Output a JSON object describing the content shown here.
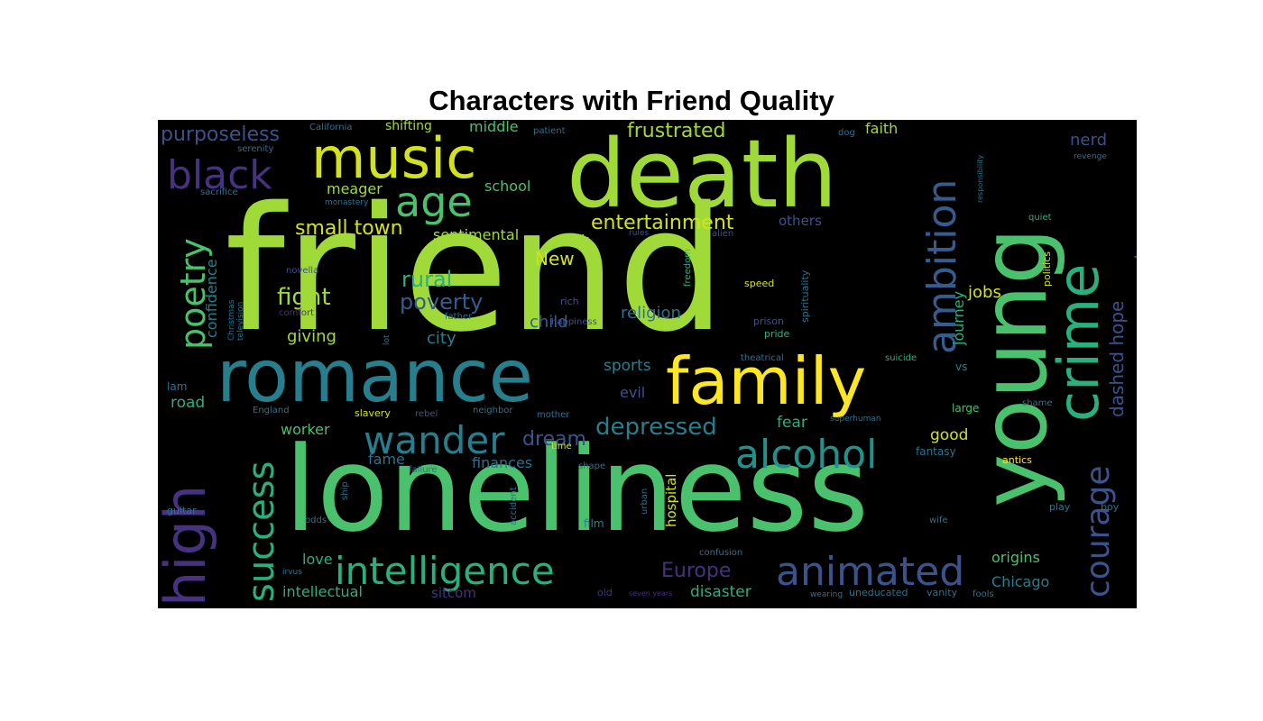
{
  "title": "Characters with Friend Quality",
  "words": [
    {
      "text": "friend",
      "color": "#a0da39"
    },
    {
      "text": "loneliness",
      "color": "#4ac16d"
    },
    {
      "text": "death",
      "color": "#a0da39"
    },
    {
      "text": "young",
      "color": "#4ac16d"
    },
    {
      "text": "romance",
      "color": "#277f8e"
    },
    {
      "text": "family",
      "color": "#fde725"
    },
    {
      "text": "music",
      "color": "#d2e21b"
    },
    {
      "text": "crime",
      "color": "#2ab07f"
    },
    {
      "text": "high",
      "color": "#46327e"
    },
    {
      "text": "black",
      "color": "#46327e"
    },
    {
      "text": "age",
      "color": "#4ac16d"
    },
    {
      "text": "ambition",
      "color": "#365c8d"
    },
    {
      "text": "intelligence",
      "color": "#2ab07f"
    },
    {
      "text": "animated",
      "color": "#3b528b"
    },
    {
      "text": "alcohol",
      "color": "#21918c"
    },
    {
      "text": "wander",
      "color": "#277f8e"
    },
    {
      "text": "success",
      "color": "#2ab07f"
    },
    {
      "text": "poetry",
      "color": "#4ac16d"
    },
    {
      "text": "courage",
      "color": "#3b528b"
    },
    {
      "text": "entertainment",
      "color": "#d2e21b"
    },
    {
      "text": "frustrated",
      "color": "#a0da39"
    },
    {
      "text": "purposeless",
      "color": "#3b528b"
    },
    {
      "text": "small town",
      "color": "#d2e21b"
    },
    {
      "text": "depressed",
      "color": "#277f8e"
    },
    {
      "text": "rural",
      "color": "#2ab07f"
    },
    {
      "text": "fight",
      "color": "#a0da39"
    },
    {
      "text": "poverty",
      "color": "#365c8d"
    },
    {
      "text": "religion",
      "color": "#2c728e"
    },
    {
      "text": "Europe",
      "color": "#46327e"
    },
    {
      "text": "dream",
      "color": "#3b528b"
    },
    {
      "text": "sentimental",
      "color": "#a0da39"
    },
    {
      "text": "New",
      "color": "#d2e21b"
    },
    {
      "text": "York",
      "color": "#a0da39"
    },
    {
      "text": "meager",
      "color": "#a0da39"
    },
    {
      "text": "middle",
      "color": "#4ac16d"
    },
    {
      "text": "school",
      "color": "#4ac16d"
    },
    {
      "text": "shifting",
      "color": "#a0da39"
    },
    {
      "text": "faith",
      "color": "#a0da39"
    },
    {
      "text": "nerd",
      "color": "#3b528b"
    },
    {
      "text": "others",
      "color": "#3b528b"
    },
    {
      "text": "dashed hope",
      "color": "#3b528b"
    },
    {
      "text": "stranger",
      "color": "#3b528b"
    },
    {
      "text": "journey",
      "color": "#2ab07f"
    },
    {
      "text": "jobs",
      "color": "#d2e21b"
    },
    {
      "text": "child",
      "color": "#365c8d"
    },
    {
      "text": "city",
      "color": "#277f8e"
    },
    {
      "text": "giving",
      "color": "#a0da39"
    },
    {
      "text": "confidence",
      "color": "#277f8e"
    },
    {
      "text": "sports",
      "color": "#277f8e"
    },
    {
      "text": "evil",
      "color": "#3b528b"
    },
    {
      "text": "fear",
      "color": "#2ab07f"
    },
    {
      "text": "good",
      "color": "#d2e21b"
    },
    {
      "text": "fame",
      "color": "#2c728e"
    },
    {
      "text": "finances",
      "color": "#2c728e"
    },
    {
      "text": "worker",
      "color": "#4ac16d"
    },
    {
      "text": "road",
      "color": "#2ab07f"
    },
    {
      "text": "love",
      "color": "#2ab07f"
    },
    {
      "text": "intellectual",
      "color": "#2ab07f"
    },
    {
      "text": "sitcom",
      "color": "#46327e"
    },
    {
      "text": "disaster",
      "color": "#2ab07f"
    },
    {
      "text": "Chicago",
      "color": "#277f8e"
    },
    {
      "text": "origins",
      "color": "#4ac16d"
    },
    {
      "text": "hospital",
      "color": "#d2e21b"
    },
    {
      "text": "film",
      "color": "#277f8e"
    },
    {
      "text": "fantasy",
      "color": "#2c728e"
    },
    {
      "text": "antics",
      "color": "#fde725"
    },
    {
      "text": "large",
      "color": "#4ac16d"
    },
    {
      "text": "shame",
      "color": "#2c728e"
    },
    {
      "text": "politics",
      "color": "#d2e21b"
    },
    {
      "text": "quiet",
      "color": "#2ab07f"
    },
    {
      "text": "revenge",
      "color": "#2c728e"
    },
    {
      "text": "suicide",
      "color": "#2ab07f"
    },
    {
      "text": "vs",
      "color": "#277f8e"
    },
    {
      "text": "prison",
      "color": "#3b528b"
    },
    {
      "text": "pride",
      "color": "#2ab07f"
    },
    {
      "text": "theatrical",
      "color": "#2c728e"
    },
    {
      "text": "speed",
      "color": "#d2e21b"
    },
    {
      "text": "spirituality",
      "color": "#2c728e"
    },
    {
      "text": "freedom",
      "color": "#2ab07f"
    },
    {
      "text": "alien",
      "color": "#3b528b"
    },
    {
      "text": "rules",
      "color": "#3b528b"
    },
    {
      "text": "rich",
      "color": "#3b528b"
    },
    {
      "text": "happiness",
      "color": "#3b528b"
    },
    {
      "text": "father",
      "color": "#2c728e"
    },
    {
      "text": "novella",
      "color": "#3b528b"
    },
    {
      "text": "Christmas",
      "color": "#2c728e"
    },
    {
      "text": "television",
      "color": "#2c728e"
    },
    {
      "text": "comfort",
      "color": "#46327e"
    },
    {
      "text": "lam",
      "color": "#2c728e"
    },
    {
      "text": "England",
      "color": "#2c728e"
    },
    {
      "text": "slavery",
      "color": "#d2e21b"
    },
    {
      "text": "rebel",
      "color": "#3b528b"
    },
    {
      "text": "neighbor",
      "color": "#2c728e"
    },
    {
      "text": "mother",
      "color": "#2c728e"
    },
    {
      "text": "failure",
      "color": "#2c728e"
    },
    {
      "text": "time",
      "color": "#d2e21b"
    },
    {
      "text": "shape",
      "color": "#2c728e"
    },
    {
      "text": "superhuman",
      "color": "#2c728e"
    },
    {
      "text": "guitar",
      "color": "#2c728e"
    },
    {
      "text": "odds",
      "color": "#2c728e"
    },
    {
      "text": "ship",
      "color": "#2c728e"
    },
    {
      "text": "accident",
      "color": "#2c728e"
    },
    {
      "text": "urban",
      "color": "#2c728e"
    },
    {
      "text": "wife",
      "color": "#2c728e"
    },
    {
      "text": "play",
      "color": "#2c728e"
    },
    {
      "text": "boy",
      "color": "#2c728e"
    },
    {
      "text": "old",
      "color": "#46327e"
    },
    {
      "text": "seven years",
      "color": "#46327e"
    },
    {
      "text": "wearing",
      "color": "#2c728e"
    },
    {
      "text": "uneducated",
      "color": "#2c728e"
    },
    {
      "text": "vanity",
      "color": "#2c728e"
    },
    {
      "text": "fools",
      "color": "#2c728e"
    },
    {
      "text": "confusion",
      "color": "#2c728e"
    },
    {
      "text": "irvus",
      "color": "#2c728e"
    },
    {
      "text": "serenity",
      "color": "#2c728e"
    },
    {
      "text": "California",
      "color": "#2c728e"
    },
    {
      "text": "patient",
      "color": "#2c728e"
    },
    {
      "text": "sacrifice",
      "color": "#2c728e"
    },
    {
      "text": "monastery",
      "color": "#2c728e"
    },
    {
      "text": "dog",
      "color": "#2c728e"
    },
    {
      "text": "lot",
      "color": "#2c728e"
    },
    {
      "text": "responsibility",
      "color": "#2c728e"
    }
  ]
}
